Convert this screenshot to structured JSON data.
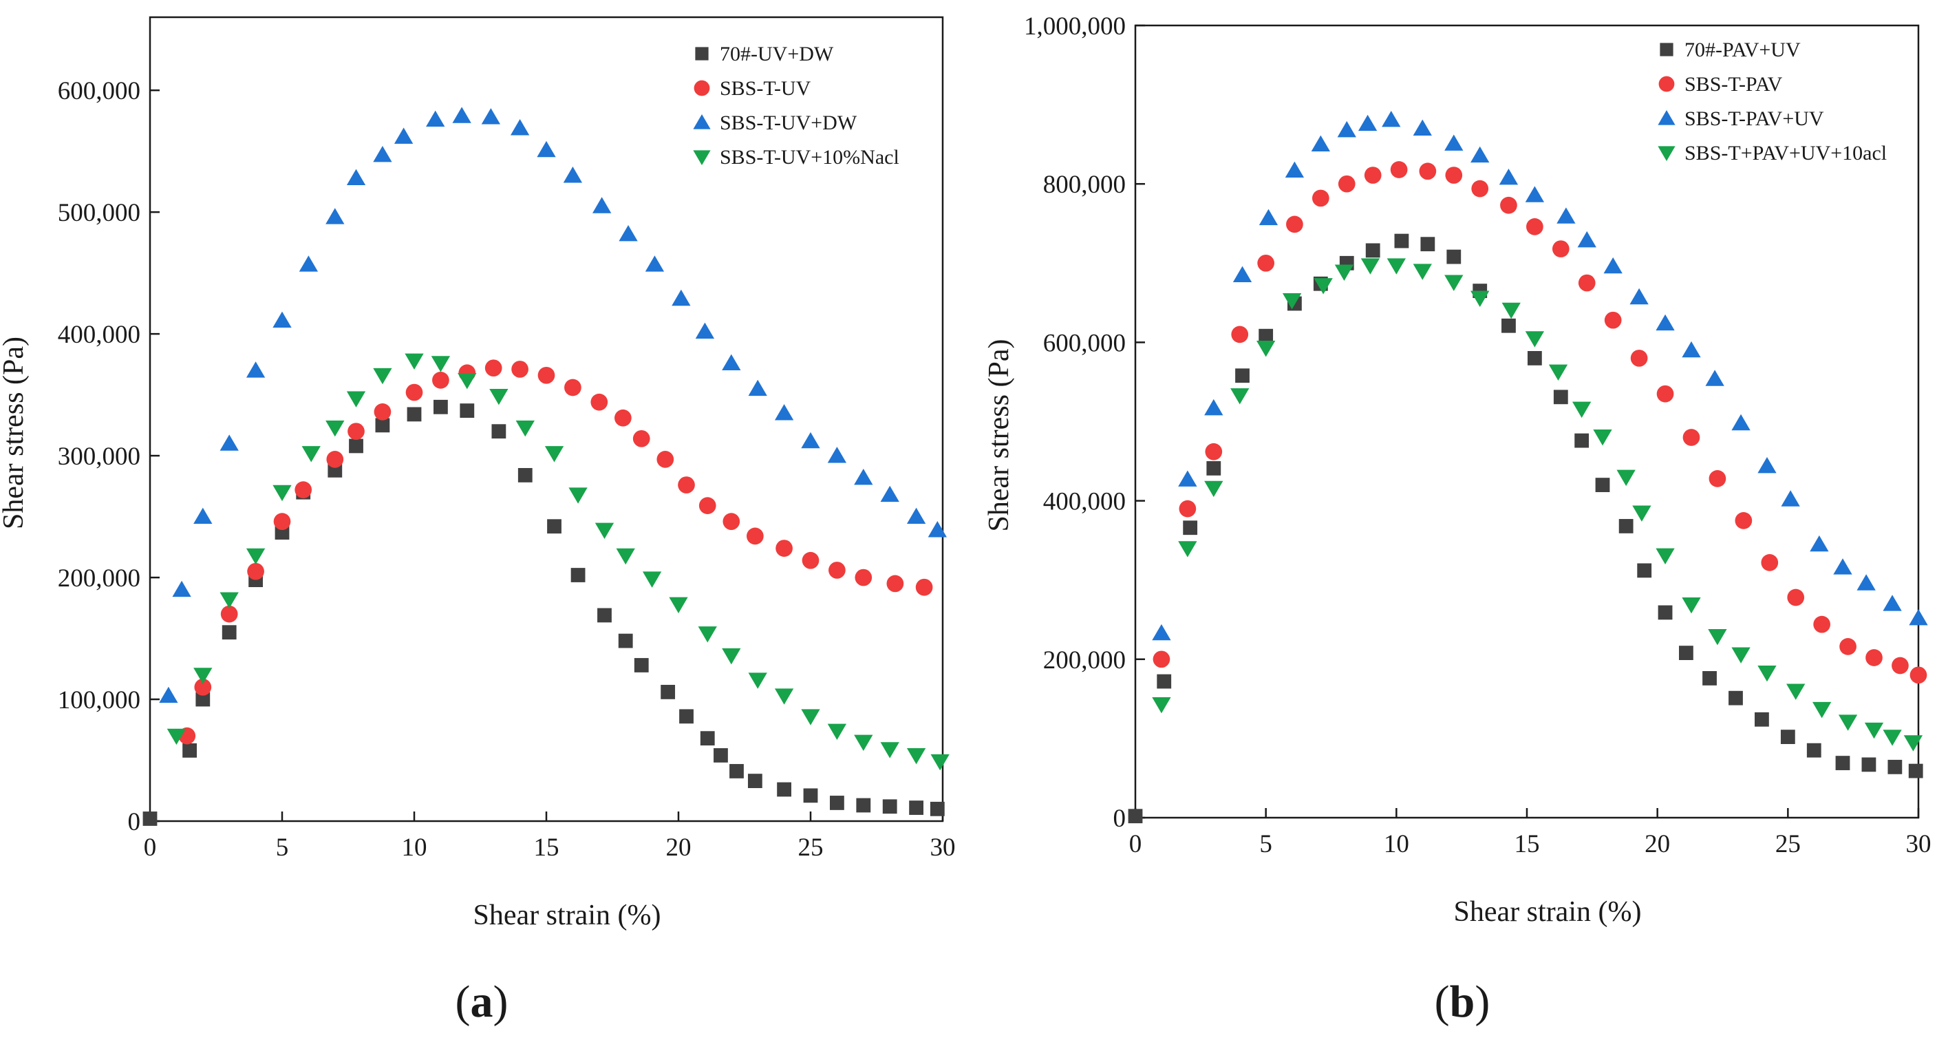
{
  "chart_data": [
    {
      "type": "scatter",
      "panel_label": {
        "open": "(",
        "letter": "a",
        "close": ")"
      },
      "xlabel": "Shear strain (%)",
      "ylabel": "Shear stress (Pa)",
      "xlim": [
        0,
        30
      ],
      "ylim": [
        0,
        660000
      ],
      "xticks": [
        0,
        5,
        10,
        15,
        20,
        25,
        30
      ],
      "xtick_labels": [
        "0",
        "5",
        "10",
        "15",
        "20",
        "25",
        "30"
      ],
      "yticks": [
        0,
        100000,
        200000,
        300000,
        400000,
        500000,
        600000
      ],
      "ytick_labels": [
        "0",
        "100,000",
        "200,000",
        "300,000",
        "400,000",
        "500,000",
        "600,000"
      ],
      "grid": false,
      "legend_position": "top-right",
      "series": [
        {
          "name": "70#-UV+DW",
          "marker": "square",
          "color": "#404040",
          "x": [
            0,
            1.5,
            2,
            3,
            4,
            5,
            5.8,
            7,
            7.8,
            8.8,
            10,
            11,
            12,
            13.2,
            14.2,
            15.3,
            16.2,
            17.2,
            18,
            18.6,
            19.6,
            20.3,
            21.1,
            21.6,
            22.2,
            22.9,
            24,
            25,
            26,
            27,
            28,
            29,
            29.8
          ],
          "y": [
            2000,
            58000,
            100000,
            155000,
            198000,
            237000,
            270000,
            288000,
            308000,
            325000,
            334000,
            340000,
            337000,
            320000,
            284000,
            242000,
            202000,
            169000,
            148000,
            128000,
            106000,
            86000,
            68000,
            54000,
            41000,
            33000,
            26000,
            21000,
            15000,
            13000,
            12000,
            11000,
            10000
          ]
        },
        {
          "name": "SBS-T-UV",
          "marker": "circle",
          "color": "#ef3b3b",
          "x": [
            1.4,
            2,
            3,
            4,
            5,
            5.8,
            7,
            7.8,
            8.8,
            10,
            11,
            12,
            13,
            14,
            15,
            16,
            17,
            17.9,
            18.6,
            19.5,
            20.3,
            21.1,
            22,
            22.9,
            24,
            25,
            26,
            27,
            28.2,
            29.3
          ],
          "y": [
            70000,
            110000,
            170000,
            205000,
            246000,
            272000,
            297000,
            320000,
            336000,
            352000,
            362000,
            368000,
            372000,
            371000,
            366000,
            356000,
            344000,
            331000,
            314000,
            297000,
            276000,
            259000,
            246000,
            234000,
            224000,
            214000,
            206000,
            200000,
            195000,
            192000
          ]
        },
        {
          "name": "SBS-T-UV+DW",
          "marker": "triangle-up",
          "color": "#1f73d3",
          "x": [
            0.7,
            1.2,
            2,
            3,
            4,
            5,
            6,
            7,
            7.8,
            8.8,
            9.6,
            10.8,
            11.8,
            12.9,
            14,
            15,
            16,
            17.1,
            18.1,
            19.1,
            20.1,
            21,
            22,
            23,
            24,
            25,
            26,
            27,
            28,
            29,
            29.8
          ],
          "y": [
            103000,
            190000,
            250000,
            310000,
            370000,
            411000,
            457000,
            496000,
            528000,
            547000,
            562000,
            576000,
            579000,
            578000,
            569000,
            551000,
            530000,
            505000,
            482000,
            457000,
            429000,
            402000,
            376000,
            355000,
            335000,
            312000,
            300000,
            282000,
            268000,
            250000,
            239000
          ]
        },
        {
          "name": "SBS-T-UV+10%Nacl",
          "marker": "triangle-down",
          "color": "#17a34a",
          "x": [
            1,
            2,
            3,
            4,
            5,
            6.1,
            7,
            7.8,
            8.8,
            10,
            11,
            12,
            13.2,
            14.2,
            15.3,
            16.2,
            17.2,
            18,
            19,
            20,
            21.1,
            22,
            23,
            24,
            25,
            26,
            27,
            28,
            29,
            29.9
          ],
          "y": [
            70000,
            120000,
            182000,
            218000,
            270000,
            302000,
            323000,
            347000,
            366000,
            378000,
            376000,
            362000,
            349000,
            323000,
            302000,
            268000,
            239000,
            218000,
            199000,
            178000,
            154000,
            136000,
            116000,
            103000,
            86000,
            74000,
            65000,
            59000,
            54000,
            49000
          ]
        }
      ]
    },
    {
      "type": "scatter",
      "panel_label": {
        "open": "(",
        "letter": "b",
        "close": ")"
      },
      "xlabel": "Shear strain (%)",
      "ylabel": "Shear stress (Pa)",
      "xlim": [
        0,
        30
      ],
      "ylim": [
        0,
        1000000
      ],
      "xticks": [
        0,
        5,
        10,
        15,
        20,
        25,
        30
      ],
      "xtick_labels": [
        "0",
        "5",
        "10",
        "15",
        "20",
        "25",
        "30"
      ],
      "yticks": [
        0,
        200000,
        400000,
        600000,
        800000,
        1000000
      ],
      "ytick_labels": [
        "0",
        "200,000",
        "400,000",
        "600,000",
        "800,000",
        "1,000,000"
      ],
      "grid": false,
      "legend_position": "top-right",
      "series": [
        {
          "name": "70#-PAV+UV",
          "marker": "square",
          "color": "#404040",
          "x": [
            0,
            1.1,
            2.1,
            3,
            4.1,
            5,
            6.1,
            7.1,
            8.1,
            9.1,
            10.2,
            11.2,
            12.2,
            13.2,
            14.3,
            15.3,
            16.3,
            17.1,
            17.9,
            18.8,
            19.5,
            20.3,
            21.1,
            22,
            23,
            24,
            25,
            26,
            27.1,
            28.1,
            29.1,
            29.9
          ],
          "y": [
            2000,
            172000,
            366000,
            441000,
            558000,
            608000,
            649000,
            674000,
            700000,
            716000,
            728000,
            724000,
            708000,
            665000,
            621000,
            580000,
            531000,
            476000,
            420000,
            368000,
            312000,
            259000,
            208000,
            176000,
            151000,
            124000,
            102000,
            85000,
            69000,
            67000,
            64000,
            59000
          ]
        },
        {
          "name": "SBS-T-PAV",
          "marker": "circle",
          "color": "#ef3b3b",
          "x": [
            1,
            2,
            3,
            4,
            5,
            6.1,
            7.1,
            8.1,
            9.1,
            10.1,
            11.2,
            12.2,
            13.2,
            14.3,
            15.3,
            16.3,
            17.3,
            18.3,
            19.3,
            20.3,
            21.3,
            22.3,
            23.3,
            24.3,
            25.3,
            26.3,
            27.3,
            28.3,
            29.3,
            30
          ],
          "y": [
            200000,
            390000,
            462000,
            610000,
            700000,
            749000,
            782000,
            800000,
            811000,
            818000,
            816000,
            811000,
            794000,
            773000,
            746000,
            718000,
            675000,
            628000,
            580000,
            535000,
            480000,
            428000,
            375000,
            322000,
            278000,
            244000,
            216000,
            202000,
            192000,
            180000
          ]
        },
        {
          "name": "SBS-T-PAV+UV",
          "marker": "triangle-up",
          "color": "#1f73d3",
          "x": [
            1,
            2,
            3,
            4.1,
            5.1,
            6.1,
            7.1,
            8.1,
            8.9,
            9.8,
            11,
            12.2,
            13.2,
            14.3,
            15.3,
            16.5,
            17.3,
            18.3,
            19.3,
            20.3,
            21.3,
            22.2,
            23.2,
            24.2,
            25.1,
            26.2,
            27.1,
            28,
            29,
            30
          ],
          "y": [
            233000,
            427000,
            517000,
            685000,
            757000,
            817000,
            850000,
            868000,
            876000,
            881000,
            870000,
            851000,
            836000,
            808000,
            786000,
            759000,
            729000,
            696000,
            657000,
            624000,
            590000,
            554000,
            498000,
            444000,
            402000,
            345000,
            316000,
            296000,
            270000,
            252000
          ]
        },
        {
          "name": "SBS-T+PAV+UV+10acl",
          "marker": "triangle-down",
          "color": "#17a34a",
          "x": [
            1,
            2,
            3,
            4,
            5,
            6,
            7.2,
            8,
            9,
            10,
            11,
            12.2,
            13.2,
            14.4,
            15.3,
            16.2,
            17.1,
            17.9,
            18.8,
            19.4,
            20.3,
            21.3,
            22.3,
            23.2,
            24.2,
            25.3,
            26.3,
            27.3,
            28.3,
            29,
            29.8
          ],
          "y": [
            143000,
            340000,
            416000,
            533000,
            593000,
            653000,
            672000,
            689000,
            697000,
            697000,
            690000,
            676000,
            656000,
            641000,
            605000,
            563000,
            516000,
            481000,
            430000,
            385000,
            331000,
            269000,
            229000,
            206000,
            183000,
            160000,
            137000,
            121000,
            111000,
            102000,
            95000
          ]
        }
      ]
    }
  ]
}
